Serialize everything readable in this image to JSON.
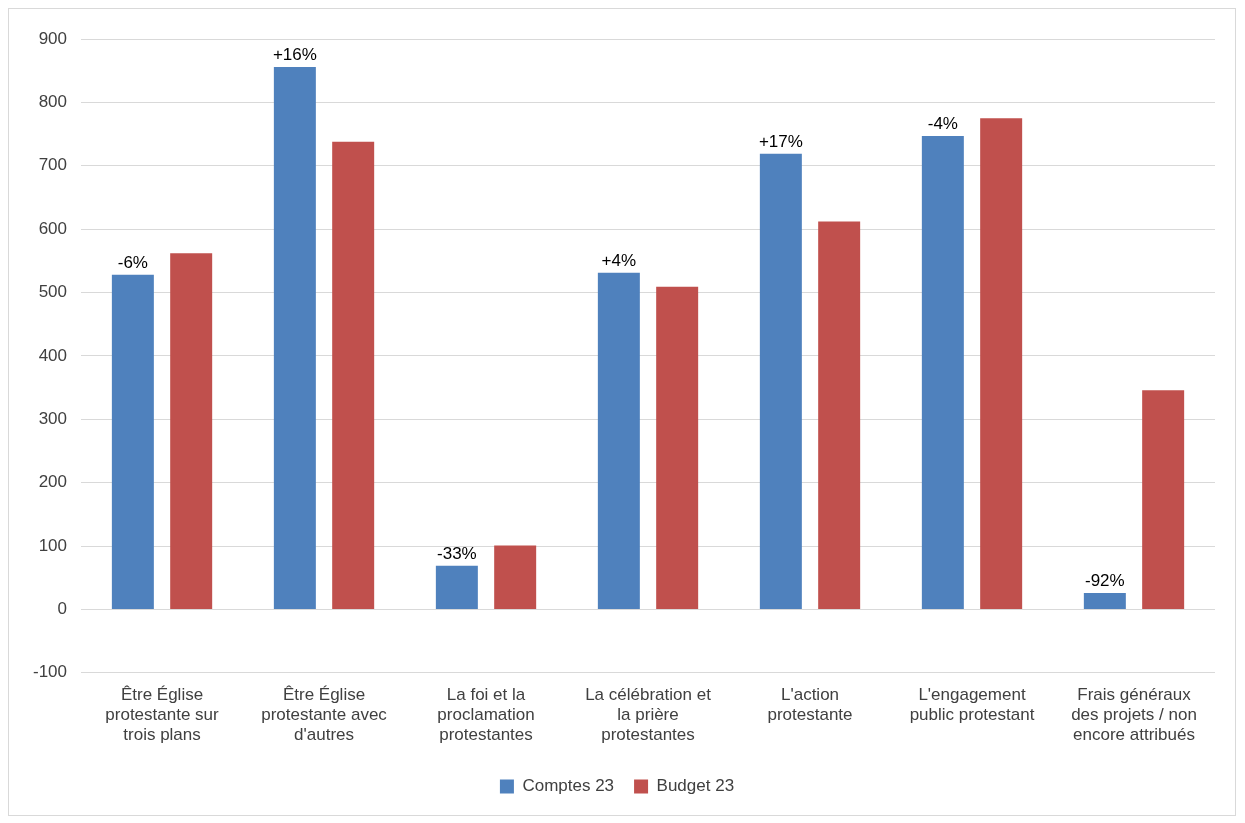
{
  "chart_data": {
    "type": "bar",
    "categories": [
      "Être Église protestante sur trois plans",
      "Être Église protestante avec d'autres",
      "La foi et la proclamation protestantes",
      "La célébration et la prière protestantes",
      "L'action protestante",
      "L'engagement public protestant",
      "Frais généraux des projets / non encore attribués"
    ],
    "series": [
      {
        "name": "Comptes 23",
        "color": "#4f81bd",
        "values": [
          528,
          856,
          69,
          531,
          719,
          747,
          26
        ]
      },
      {
        "name": "Budget 23",
        "color": "#c0504d",
        "values": [
          562,
          738,
          101,
          509,
          612,
          775,
          346
        ]
      }
    ],
    "ylim": [
      -100,
      900
    ],
    "yticks": [
      -100,
      0,
      100,
      200,
      300,
      400,
      500,
      600,
      700,
      800,
      900
    ],
    "grid": "y",
    "legend": "bottom",
    "annotations": [
      "-6%",
      "+16%",
      "-33%",
      "+4%",
      "+17%",
      "-4%",
      "-92%"
    ]
  }
}
